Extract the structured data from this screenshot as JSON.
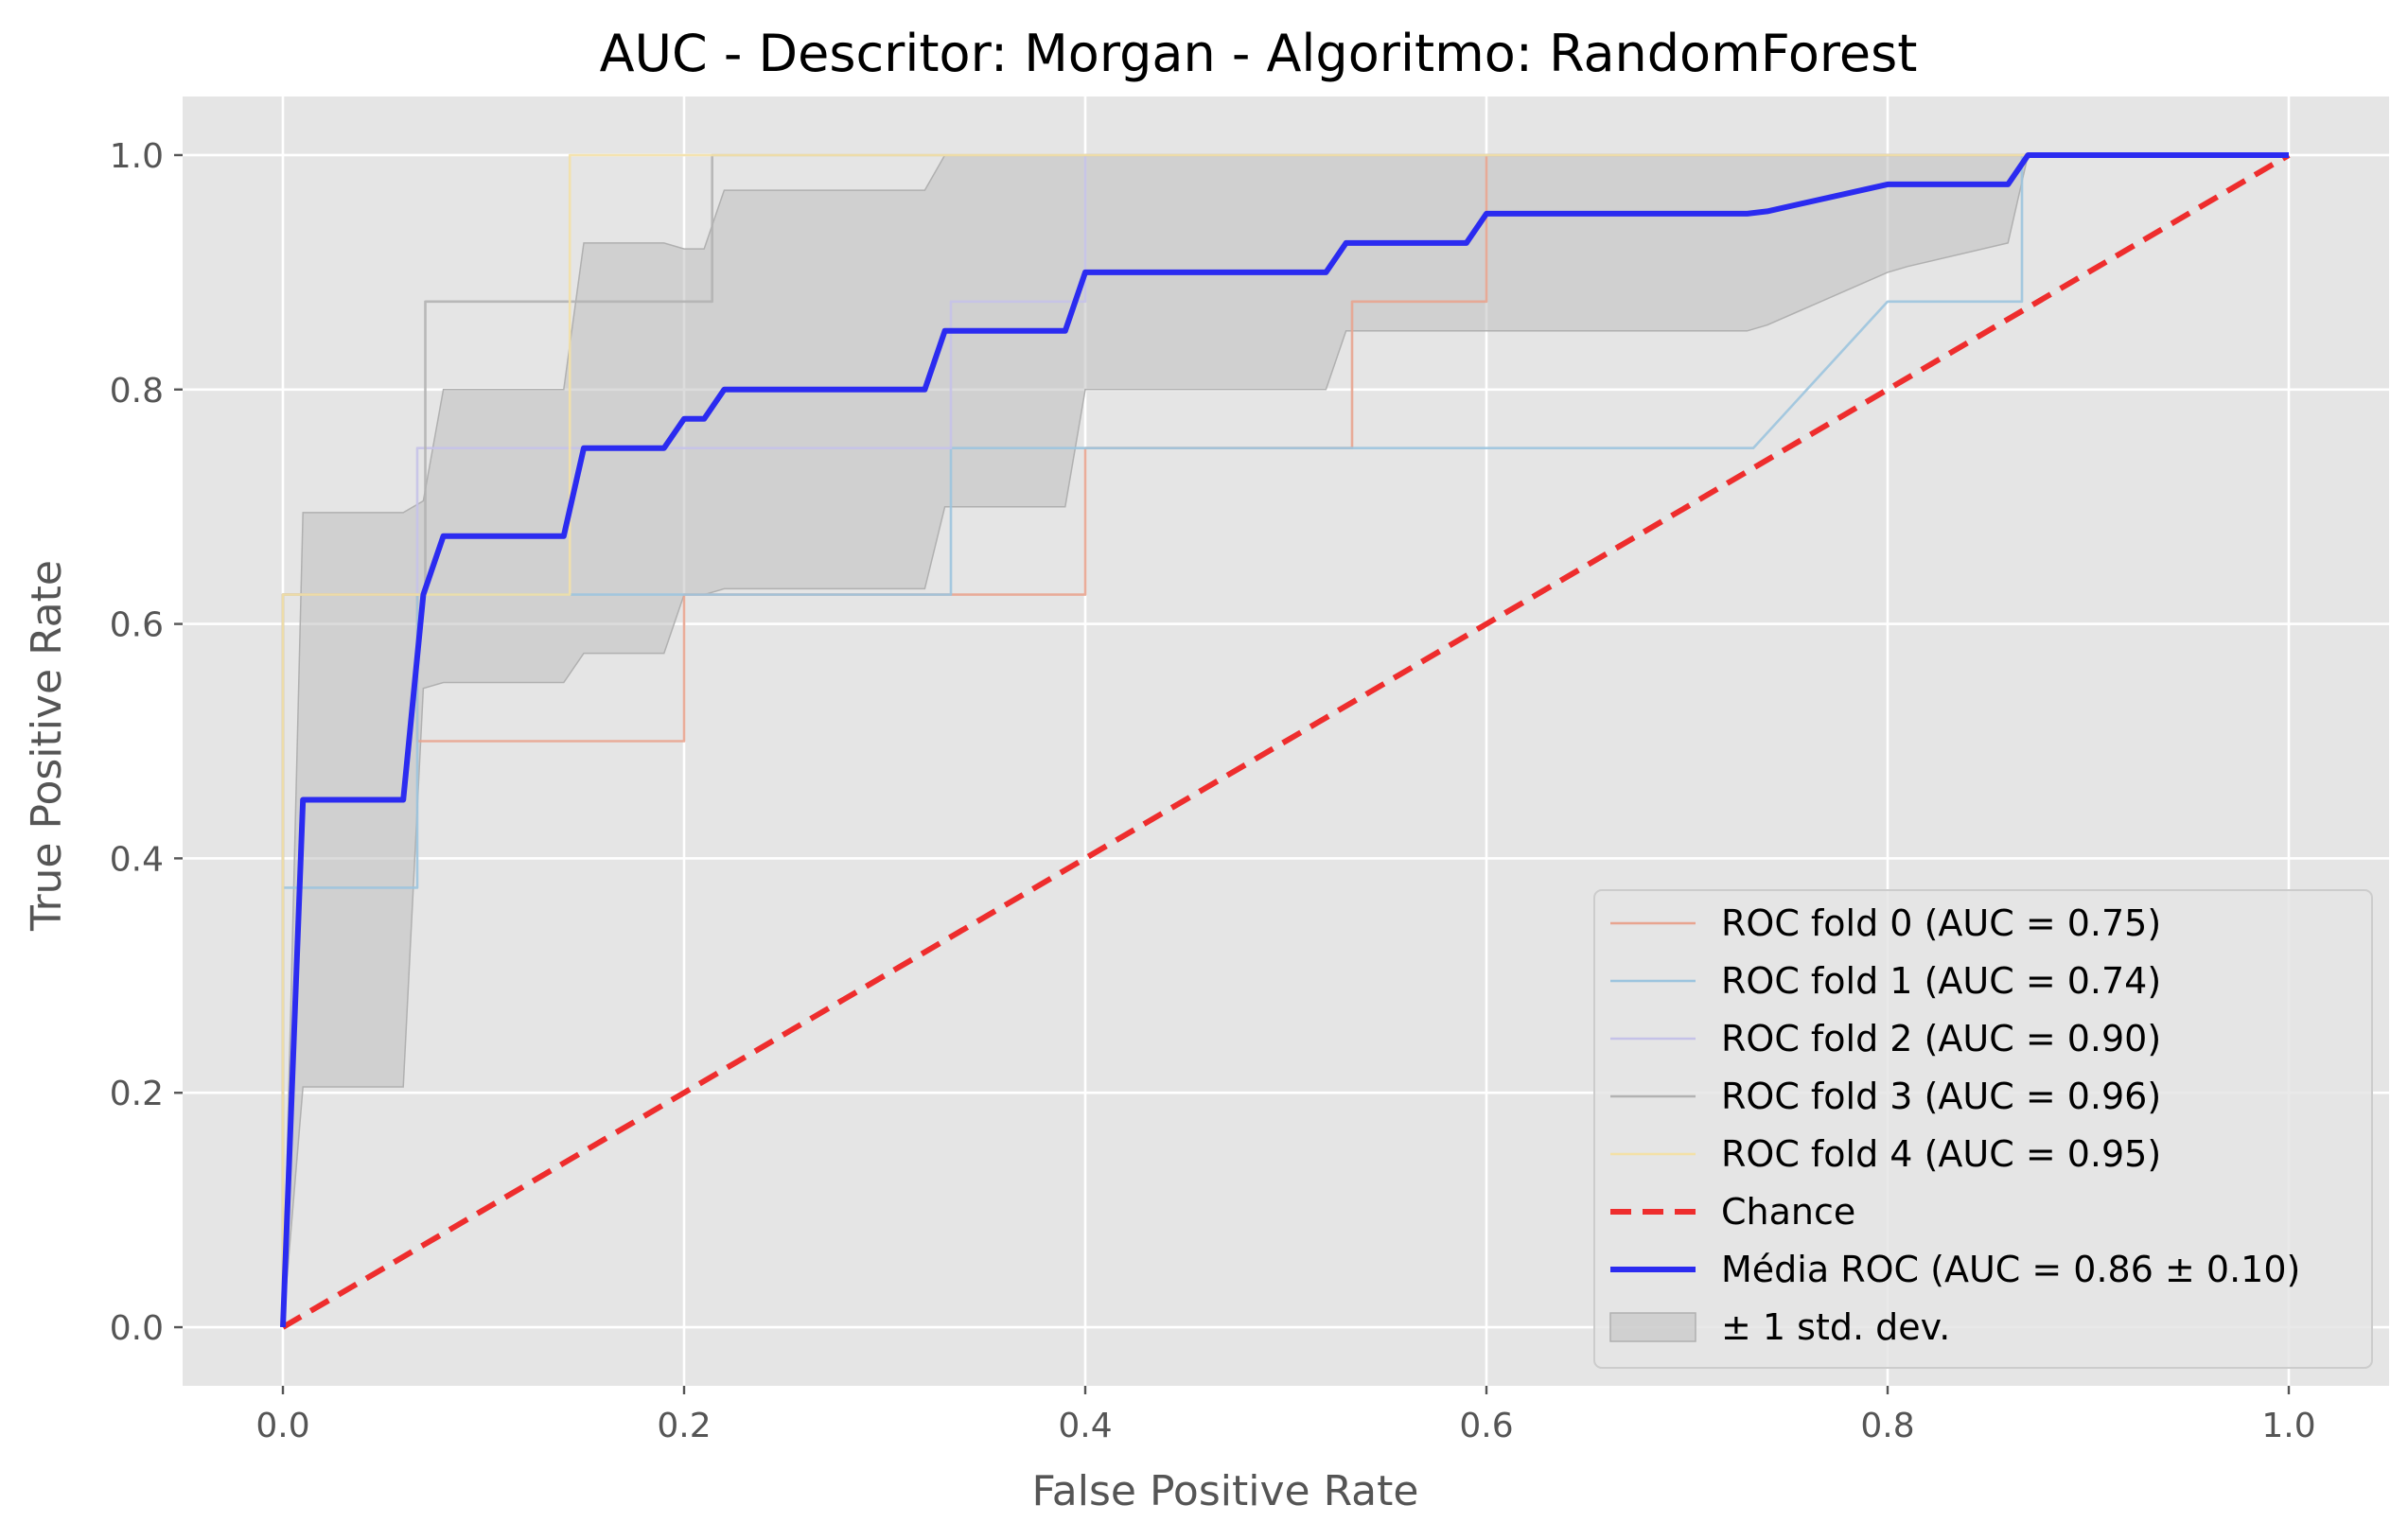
{
  "chart_data": {
    "type": "line",
    "title": "AUC - Descritor: Morgan - Algoritmo: RandomForest",
    "xlabel": "False Positive Rate",
    "ylabel": "True Positive Rate",
    "xlim": [
      -0.05,
      1.05
    ],
    "ylim": [
      -0.05,
      1.05
    ],
    "xticks": [
      0.0,
      0.2,
      0.4,
      0.6,
      0.8,
      1.0
    ],
    "yticks": [
      0.0,
      0.2,
      0.4,
      0.6,
      0.8,
      1.0
    ],
    "tick_labels_x": [
      "0.0",
      "0.2",
      "0.4",
      "0.6",
      "0.8",
      "1.0"
    ],
    "tick_labels_y": [
      "0.0",
      "0.2",
      "0.4",
      "0.6",
      "0.8",
      "1.0"
    ],
    "grid": true,
    "background": "#e5e5e5",
    "legend_position": "lower-right",
    "series": [
      {
        "name": "ROC fold 0 (AUC = 0.75)",
        "color": "#e8a48f",
        "style": "thin-solid",
        "x": [
          0,
          0,
          0.067,
          0.067,
          0.2,
          0.2,
          0.4,
          0.4,
          0.533,
          0.533,
          0.6,
          0.6,
          1.0
        ],
        "y": [
          0,
          0.625,
          0.625,
          0.5,
          0.5,
          0.625,
          0.625,
          0.75,
          0.75,
          0.875,
          0.875,
          1.0,
          1.0
        ]
      },
      {
        "name": "ROC fold 1 (AUC = 0.74)",
        "color": "#9cc4de",
        "style": "thin-solid",
        "x": [
          0,
          0,
          0.067,
          0.067,
          0.333,
          0.333,
          0.733,
          0.8,
          0.867,
          0.867,
          1.0
        ],
        "y": [
          0,
          0.375,
          0.375,
          0.625,
          0.625,
          0.75,
          0.75,
          0.875,
          0.875,
          1.0,
          1.0
        ]
      },
      {
        "name": "ROC fold 2 (AUC = 0.90)",
        "color": "#c5c2e8",
        "style": "thin-solid",
        "x": [
          0,
          0,
          0.067,
          0.067,
          0.333,
          0.333,
          0.4,
          0.4,
          1.0
        ],
        "y": [
          0,
          0.625,
          0.625,
          0.75,
          0.75,
          0.875,
          0.875,
          1.0,
          1.0
        ]
      },
      {
        "name": "ROC fold 3 (AUC = 0.96)",
        "color": "#b2b2b2",
        "style": "thin-solid",
        "x": [
          0,
          0,
          0.071,
          0.071,
          0.214,
          0.214,
          1.0
        ],
        "y": [
          0,
          0.625,
          0.625,
          0.875,
          0.875,
          1.0,
          1.0
        ]
      },
      {
        "name": "ROC fold 4 (AUC = 0.95)",
        "color": "#f3e0a6",
        "style": "thin-solid",
        "x": [
          0,
          0,
          0.143,
          0.143,
          1.0
        ],
        "y": [
          0,
          0.625,
          0.625,
          1.0,
          1.0
        ]
      },
      {
        "name": "Chance",
        "color": "#ee2d2d",
        "style": "dashed",
        "x": [
          0,
          1
        ],
        "y": [
          0,
          1
        ]
      },
      {
        "name": "Média ROC (AUC = 0.86 ± 0.10)",
        "color": "#2b2bf0",
        "style": "thick-solid",
        "x": [
          0,
          0.01,
          0.02,
          0.06,
          0.07,
          0.08,
          0.09,
          0.14,
          0.15,
          0.19,
          0.2,
          0.21,
          0.22,
          0.32,
          0.33,
          0.39,
          0.4,
          0.52,
          0.53,
          0.59,
          0.6,
          0.73,
          0.74,
          0.8,
          0.81,
          0.86,
          0.87,
          1.0
        ],
        "y": [
          0,
          0.45,
          0.45,
          0.45,
          0.625,
          0.675,
          0.675,
          0.675,
          0.75,
          0.75,
          0.775,
          0.775,
          0.8,
          0.8,
          0.85,
          0.85,
          0.9,
          0.9,
          0.925,
          0.925,
          0.95,
          0.95,
          0.952,
          0.975,
          0.975,
          0.975,
          1.0,
          1.0
        ]
      }
    ],
    "band": {
      "name": "± 1 std. dev.",
      "color": "#bfbfbf",
      "x": [
        0,
        0.01,
        0.02,
        0.06,
        0.07,
        0.08,
        0.09,
        0.14,
        0.15,
        0.19,
        0.2,
        0.21,
        0.22,
        0.32,
        0.33,
        0.39,
        0.4,
        0.52,
        0.53,
        0.59,
        0.6,
        0.73,
        0.74,
        0.8,
        0.81,
        0.86,
        0.87,
        1.0
      ],
      "upper": [
        0,
        0.695,
        0.695,
        0.695,
        0.705,
        0.8,
        0.8,
        0.8,
        0.925,
        0.925,
        0.92,
        0.92,
        0.97,
        0.97,
        1.0,
        1.0,
        1.0,
        1.0,
        1.0,
        1.0,
        1.0,
        1.0,
        1.0,
        1.0,
        1.0,
        1.0,
        1.0,
        1.0
      ],
      "lower": [
        0,
        0.205,
        0.205,
        0.205,
        0.545,
        0.55,
        0.55,
        0.55,
        0.575,
        0.575,
        0.625,
        0.625,
        0.63,
        0.63,
        0.7,
        0.7,
        0.8,
        0.8,
        0.85,
        0.85,
        0.85,
        0.85,
        0.855,
        0.9,
        0.905,
        0.925,
        1.0,
        1.0
      ]
    }
  }
}
